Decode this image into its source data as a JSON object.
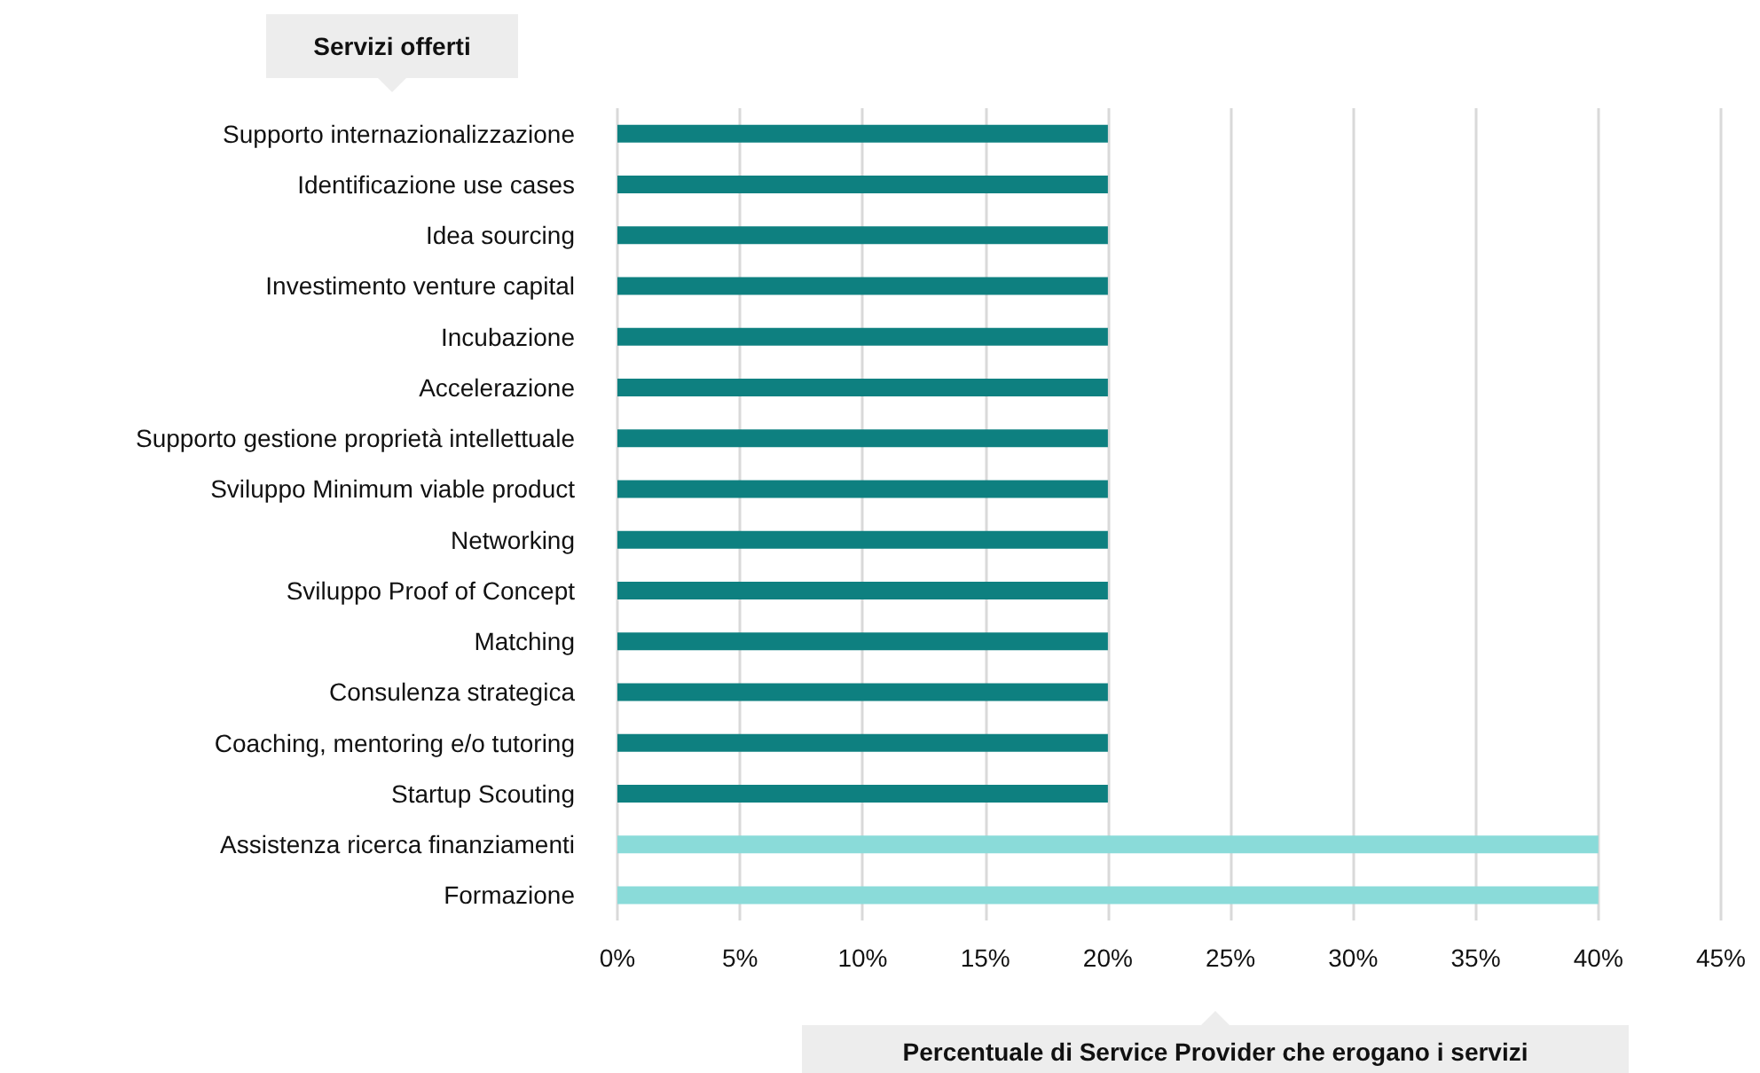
{
  "chart_data": {
    "type": "bar",
    "orientation": "horizontal",
    "ylabel": "Servizi offerti",
    "xlabel": "Percentuale di Service Provider che erogano i servizi",
    "categories": [
      "Supporto internazionalizzazione",
      "Identificazione use cases",
      "Idea sourcing",
      "Investimento venture capital",
      "Incubazione",
      "Accelerazione",
      "Supporto gestione proprietà intellettuale",
      "Sviluppo Minimum viable product",
      "Networking",
      "Sviluppo Proof of Concept",
      "Matching",
      "Consulenza strategica",
      "Coaching, mentoring e/o tutoring",
      "Startup Scouting",
      "Assistenza ricerca finanziamenti",
      "Formazione"
    ],
    "values": [
      20,
      20,
      20,
      20,
      20,
      20,
      20,
      20,
      20,
      20,
      20,
      20,
      20,
      20,
      40,
      40
    ],
    "colors": [
      "#0e8080",
      "#0e8080",
      "#0e8080",
      "#0e8080",
      "#0e8080",
      "#0e8080",
      "#0e8080",
      "#0e8080",
      "#0e8080",
      "#0e8080",
      "#0e8080",
      "#0e8080",
      "#0e8080",
      "#0e8080",
      "#8adbd9",
      "#8adbd9"
    ],
    "xlim": [
      0,
      45
    ],
    "xticks": [
      {
        "value": 0,
        "label": "0%"
      },
      {
        "value": 5,
        "label": "5%"
      },
      {
        "value": 10,
        "label": "10%"
      },
      {
        "value": 15,
        "label": "15%"
      },
      {
        "value": 20,
        "label": "20%"
      },
      {
        "value": 25,
        "label": "25%"
      },
      {
        "value": 30,
        "label": "30%"
      },
      {
        "value": 35,
        "label": "35%"
      },
      {
        "value": 40,
        "label": "40%"
      },
      {
        "value": 45,
        "label": "45%"
      }
    ],
    "grid": "x"
  }
}
